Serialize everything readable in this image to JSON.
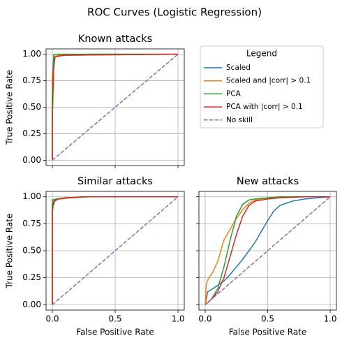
{
  "title": "ROC Curves (Logistic Regression)",
  "legend": {
    "title": "Legend"
  },
  "chart_data": [
    {
      "type": "line",
      "title": "Known attacks",
      "ylabel": "True Positive Rate",
      "xlim": [
        -0.05,
        1.05
      ],
      "ylim": [
        -0.05,
        1.05
      ],
      "grid": true,
      "xticks": [
        0,
        0.5,
        1
      ],
      "yticks": [
        {
          "value": 0,
          "label": "0.00"
        },
        {
          "value": 0.25,
          "label": "0.25"
        },
        {
          "value": 0.5,
          "label": "0.50"
        },
        {
          "value": 0.75,
          "label": "0.75"
        },
        {
          "value": 1,
          "label": "1.00"
        }
      ],
      "series": [
        {
          "name": "Scaled",
          "color": "#1f77b4",
          "x": [
            0,
            0,
            0.01,
            0.02,
            0.05,
            0.3,
            1
          ],
          "values": [
            0,
            0.4,
            0.9,
            0.97,
            0.99,
            1,
            1
          ]
        },
        {
          "name": "Scaled and |corr| > 0.1",
          "color": "#ff7f0e",
          "x": [
            0,
            0,
            0.01,
            0.02,
            0.05,
            1
          ],
          "values": [
            0,
            0.8,
            0.95,
            0.98,
            0.99,
            1
          ]
        },
        {
          "name": "PCA",
          "color": "#2ca02c",
          "x": [
            0,
            0,
            0.01,
            0.03,
            1
          ],
          "values": [
            0,
            0.6,
            0.99,
            1,
            1
          ]
        },
        {
          "name": "PCA with |corr| > 0.1",
          "color": "#d62728",
          "x": [
            0,
            0,
            0.01,
            0.02,
            0.04,
            0.1,
            1
          ],
          "values": [
            0,
            0.4,
            0.85,
            0.97,
            0.98,
            0.99,
            1
          ]
        },
        {
          "name": "No skill",
          "color": "#9467bd",
          "dashed": true,
          "x": [
            0,
            1
          ],
          "values": [
            0,
            1
          ]
        }
      ]
    },
    {
      "type": "line",
      "title": "Similar attacks",
      "xlabel": "False Positive Rate",
      "ylabel": "True Positive Rate",
      "xlim": [
        -0.05,
        1.05
      ],
      "ylim": [
        -0.05,
        1.05
      ],
      "grid": true,
      "xticks": [
        {
          "value": 0,
          "label": "0.0"
        },
        {
          "value": 0.5,
          "label": "0.5"
        },
        {
          "value": 1,
          "label": "1.0"
        }
      ],
      "yticks": [
        {
          "value": 0,
          "label": "0.00"
        },
        {
          "value": 0.25,
          "label": "0.25"
        },
        {
          "value": 0.5,
          "label": "0.50"
        },
        {
          "value": 0.75,
          "label": "0.75"
        },
        {
          "value": 1,
          "label": "1.00"
        }
      ],
      "series": [
        {
          "name": "Scaled",
          "color": "#1f77b4",
          "x": [
            0,
            0,
            0.02,
            0.05,
            0.1,
            0.3,
            1
          ],
          "values": [
            0,
            0.9,
            0.96,
            0.98,
            0.99,
            1,
            1
          ]
        },
        {
          "name": "Scaled and |corr| > 0.1",
          "color": "#ff7f0e",
          "x": [
            0,
            0,
            0.02,
            0.06,
            0.15,
            0.3,
            1
          ],
          "values": [
            0,
            0.93,
            0.97,
            0.98,
            0.99,
            1,
            1
          ]
        },
        {
          "name": "PCA",
          "color": "#2ca02c",
          "x": [
            0,
            0,
            0.03,
            0.1,
            0.25,
            1
          ],
          "values": [
            0,
            0.97,
            0.98,
            0.99,
            1,
            1
          ]
        },
        {
          "name": "PCA with |corr| > 0.1",
          "color": "#d62728",
          "x": [
            0,
            0,
            0.01,
            0.05,
            0.12,
            0.25,
            1
          ],
          "values": [
            0,
            0.85,
            0.96,
            0.98,
            0.99,
            1,
            1
          ]
        },
        {
          "name": "No skill",
          "color": "#9467bd",
          "dashed": true,
          "x": [
            0,
            1
          ],
          "values": [
            0,
            1
          ]
        }
      ]
    },
    {
      "type": "line",
      "title": "New attacks",
      "xlabel": "False Positive Rate",
      "xlim": [
        -0.05,
        1.05
      ],
      "ylim": [
        -0.05,
        1.05
      ],
      "grid": true,
      "xticks": [
        {
          "value": 0,
          "label": "0.0"
        },
        {
          "value": 0.5,
          "label": "0.5"
        },
        {
          "value": 1,
          "label": "1.0"
        }
      ],
      "yticks": [
        0,
        0.25,
        0.5,
        0.75,
        1
      ],
      "series": [
        {
          "name": "Scaled",
          "color": "#1f77b4",
          "x": [
            0,
            0.02,
            0.05,
            0.1,
            0.15,
            0.2,
            0.25,
            0.3,
            0.35,
            0.4,
            0.45,
            0.5,
            0.55,
            0.6,
            0.7,
            0.8,
            0.9,
            1
          ],
          "values": [
            0,
            0.12,
            0.14,
            0.18,
            0.22,
            0.28,
            0.35,
            0.42,
            0.5,
            0.58,
            0.68,
            0.78,
            0.87,
            0.92,
            0.96,
            0.98,
            0.99,
            1
          ]
        },
        {
          "name": "Scaled and |corr| > 0.1",
          "color": "#ff7f0e",
          "x": [
            0,
            0.01,
            0.03,
            0.06,
            0.1,
            0.15,
            0.2,
            0.25,
            0.3,
            0.35,
            0.4,
            0.5,
            0.6,
            0.8,
            1
          ],
          "values": [
            0,
            0.2,
            0.25,
            0.3,
            0.4,
            0.6,
            0.7,
            0.8,
            0.88,
            0.94,
            0.97,
            0.99,
            1,
            1,
            1
          ]
        },
        {
          "name": "PCA",
          "color": "#2ca02c",
          "x": [
            0,
            0.05,
            0.1,
            0.15,
            0.2,
            0.25,
            0.3,
            0.35,
            0.4,
            0.5,
            0.6,
            1
          ],
          "values": [
            0,
            0.05,
            0.15,
            0.35,
            0.6,
            0.82,
            0.93,
            0.97,
            0.98,
            0.99,
            1,
            1
          ]
        },
        {
          "name": "PCA with |corr| > 0.1",
          "color": "#d62728",
          "x": [
            0,
            0.05,
            0.1,
            0.15,
            0.2,
            0.25,
            0.3,
            0.35,
            0.4,
            0.5,
            0.6,
            0.8,
            1
          ],
          "values": [
            0,
            0.05,
            0.12,
            0.25,
            0.45,
            0.65,
            0.82,
            0.92,
            0.96,
            0.98,
            0.99,
            1,
            1
          ]
        },
        {
          "name": "No skill",
          "color": "#9467bd",
          "dashed": true,
          "x": [
            0,
            1
          ],
          "values": [
            0,
            1
          ]
        }
      ]
    }
  ]
}
